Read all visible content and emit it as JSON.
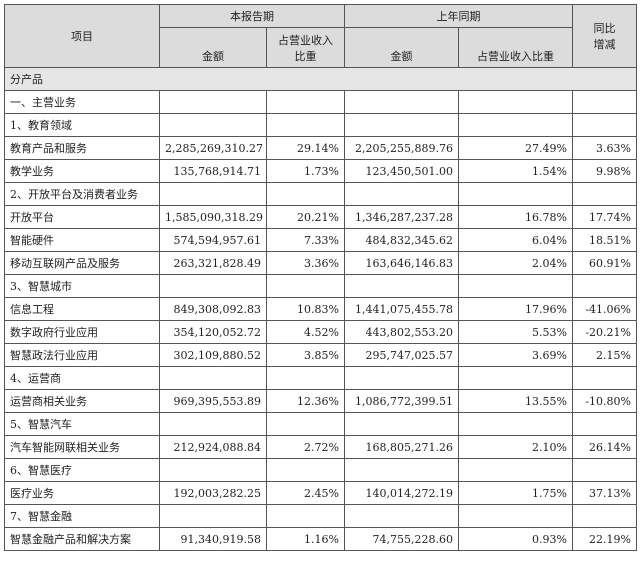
{
  "header": {
    "item": "项目",
    "current_period": "本报告期",
    "prior_period": "上年同期",
    "yoy_line1": "同比",
    "yoy_line2": "增减",
    "amount": "金额",
    "share_line1": "占营业收入",
    "share_line2": "比重",
    "share_full": "占营业收入比重"
  },
  "section_title": "分产品",
  "rows": [
    {
      "type": "cat",
      "label": "一、主营业务"
    },
    {
      "type": "cat",
      "label": "1、教育领域"
    },
    {
      "type": "data",
      "label": "教育产品和服务",
      "cur_amount": "2,285,269,310.27",
      "cur_share": "29.14%",
      "prev_amount": "2,205,255,889.76",
      "prev_share": "27.49%",
      "yoy": "3.63%"
    },
    {
      "type": "data",
      "label": "教学业务",
      "cur_amount": "135,768,914.71",
      "cur_share": "1.73%",
      "prev_amount": "123,450,501.00",
      "prev_share": "1.54%",
      "yoy": "9.98%"
    },
    {
      "type": "cat",
      "label": "2、开放平台及消费者业务"
    },
    {
      "type": "data",
      "label": "开放平台",
      "cur_amount": "1,585,090,318.29",
      "cur_share": "20.21%",
      "prev_amount": "1,346,287,237.28",
      "prev_share": "16.78%",
      "yoy": "17.74%"
    },
    {
      "type": "data",
      "label": "智能硬件",
      "cur_amount": "574,594,957.61",
      "cur_share": "7.33%",
      "prev_amount": "484,832,345.62",
      "prev_share": "6.04%",
      "yoy": "18.51%"
    },
    {
      "type": "data",
      "label": "移动互联网产品及服务",
      "cur_amount": "263,321,828.49",
      "cur_share": "3.36%",
      "prev_amount": "163,646,146.83",
      "prev_share": "2.04%",
      "yoy": "60.91%"
    },
    {
      "type": "cat",
      "label": "3、智慧城市"
    },
    {
      "type": "data",
      "label": "信息工程",
      "cur_amount": "849,308,092.83",
      "cur_share": "10.83%",
      "prev_amount": "1,441,075,455.78",
      "prev_share": "17.96%",
      "yoy": "-41.06%"
    },
    {
      "type": "data",
      "label": "数字政府行业应用",
      "cur_amount": "354,120,052.72",
      "cur_share": "4.52%",
      "prev_amount": "443,802,553.20",
      "prev_share": "5.53%",
      "yoy": "-20.21%"
    },
    {
      "type": "data",
      "label": "智慧政法行业应用",
      "cur_amount": "302,109,880.52",
      "cur_share": "3.85%",
      "prev_amount": "295,747,025.57",
      "prev_share": "3.69%",
      "yoy": "2.15%"
    },
    {
      "type": "cat",
      "label": "4、运营商"
    },
    {
      "type": "data",
      "label": "运营商相关业务",
      "cur_amount": "969,395,553.89",
      "cur_share": "12.36%",
      "prev_amount": "1,086,772,399.51",
      "prev_share": "13.55%",
      "yoy": "-10.80%"
    },
    {
      "type": "cat",
      "label": "5、智慧汽车"
    },
    {
      "type": "data",
      "label": "汽车智能网联相关业务",
      "cur_amount": "212,924,088.84",
      "cur_share": "2.72%",
      "prev_amount": "168,805,271.26",
      "prev_share": "2.10%",
      "yoy": "26.14%"
    },
    {
      "type": "cat",
      "label": "6、智慧医疗"
    },
    {
      "type": "data",
      "label": "医疗业务",
      "cur_amount": "192,003,282.25",
      "cur_share": "2.45%",
      "prev_amount": "140,014,272.19",
      "prev_share": "1.75%",
      "yoy": "37.13%"
    },
    {
      "type": "cat",
      "label": "7、智慧金融"
    },
    {
      "type": "data",
      "label": "智慧金融产品和解决方案",
      "cur_amount": "91,340,919.58",
      "cur_share": "1.16%",
      "prev_amount": "74,755,228.60",
      "prev_share": "0.93%",
      "yoy": "22.19%"
    }
  ]
}
